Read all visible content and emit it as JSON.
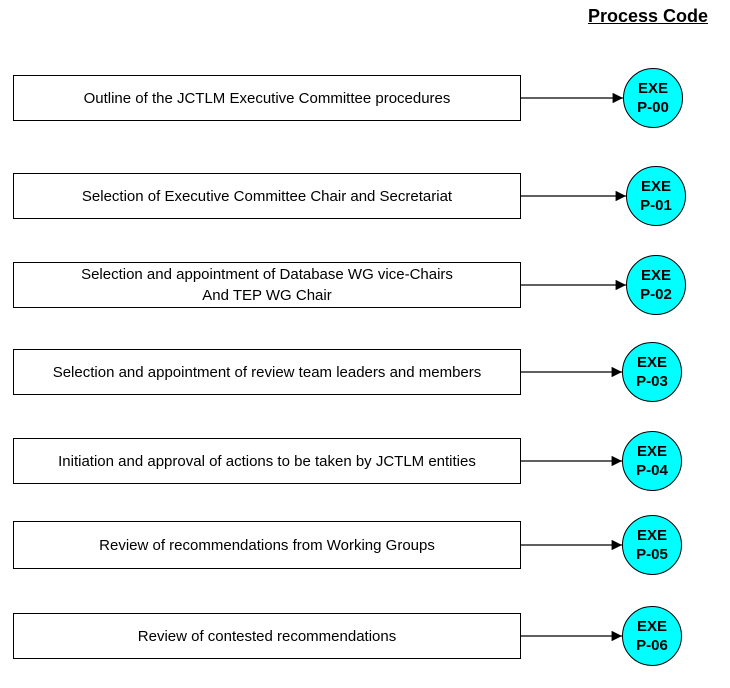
{
  "header": {
    "title": "Process Code"
  },
  "colors": {
    "circle_fill": "#00ffff",
    "line": "#000000"
  },
  "processes": [
    {
      "label": "Outline of the JCTLM Executive Committee procedures",
      "code_line1": "EXE",
      "code_line2": "P-00"
    },
    {
      "label": "Selection of Executive Committee Chair and Secretariat",
      "code_line1": "EXE",
      "code_line2": "P-01"
    },
    {
      "label": "Selection and appointment of Database WG vice-Chairs\nAnd TEP WG Chair",
      "code_line1": "EXE",
      "code_line2": "P-02"
    },
    {
      "label": "Selection and appointment of review team leaders and members",
      "code_line1": "EXE",
      "code_line2": "P-03"
    },
    {
      "label": "Initiation and approval of actions to be taken by JCTLM entities",
      "code_line1": "EXE",
      "code_line2": "P-04"
    },
    {
      "label": "Review of recommendations from Working Groups",
      "code_line1": "EXE",
      "code_line2": "P-05"
    },
    {
      "label": "Review of contested recommendations",
      "code_line1": "EXE",
      "code_line2": "P-06"
    }
  ]
}
